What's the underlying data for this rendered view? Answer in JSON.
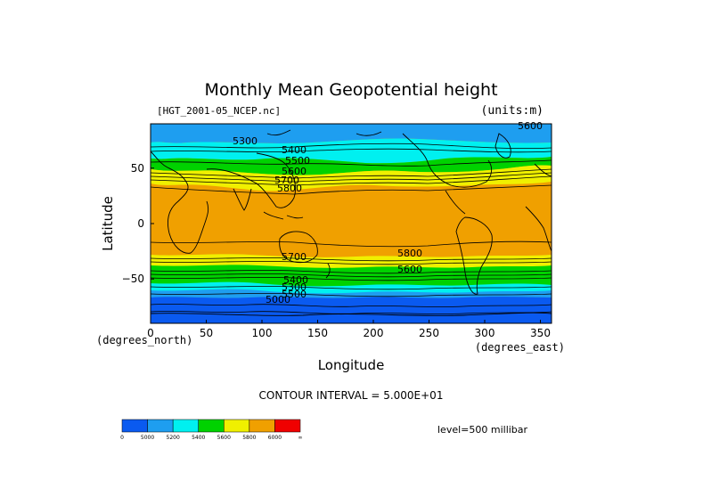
{
  "title": "Monthly Mean Geopotential height",
  "file_label": "[HGT_2001-05_NCEP.nc]",
  "units_label": "(units:m)",
  "y_axis": {
    "label": "Latitude",
    "unit": "(degrees_north)",
    "ticks": [
      "50",
      "0",
      "−50"
    ]
  },
  "x_axis": {
    "label": "Longitude",
    "unit": "(degrees_east)",
    "ticks": [
      "0",
      "50",
      "100",
      "150",
      "200",
      "250",
      "300",
      "350"
    ]
  },
  "contour_interval": "CONTOUR INTERVAL = 5.000E+01",
  "level": "level=500 millibar",
  "contour_labels": [
    "5300",
    "5400",
    "5500",
    "5600",
    "5700",
    "5800",
    "5800",
    "5600",
    "5700",
    "5400",
    "5300",
    "5500",
    "5000",
    "5600"
  ],
  "colorbar": {
    "colors": [
      "#0a5af0",
      "#1e9ef0",
      "#00f0f0",
      "#00d200",
      "#f0f000",
      "#f0a000",
      "#f00000"
    ],
    "labels": [
      "0",
      "5000",
      "5200",
      "5400",
      "5600",
      "5800",
      "6000",
      "∞"
    ]
  }
}
